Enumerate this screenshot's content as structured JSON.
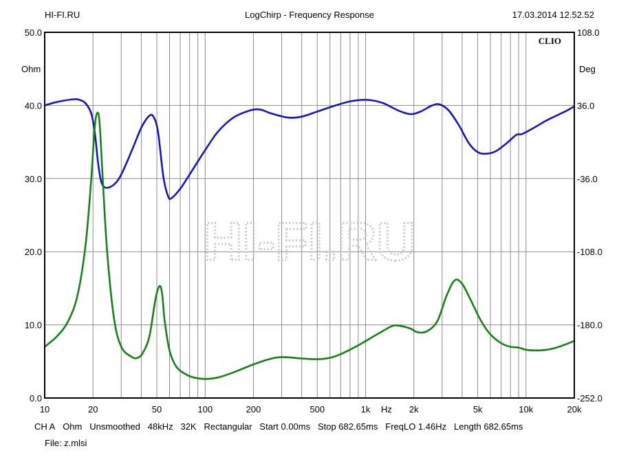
{
  "header": {
    "site": "HI-FI.RU",
    "title": "LogChirp - Frequency Response",
    "datetime": "17.03.2014 12.52.52"
  },
  "brand": "CLIO",
  "watermark": "HI-FI.RU",
  "footer": {
    "ch": "CH A",
    "unit": "Ohm",
    "smoothing": "Unsmoothed",
    "rate": "48kHz",
    "size": "32K",
    "window": "Rectangular",
    "start": "Start 0.00ms",
    "stop": "Stop 682.65ms",
    "freqlo": "FreqLO 1.46Hz",
    "length": "Length 682.65ms",
    "file": "File: z.mlsi"
  },
  "chart_data": {
    "type": "line",
    "title": "LogChirp - Frequency Response",
    "xlabel": "Hz",
    "ylabel": "Ohm",
    "y2label": "Deg",
    "xscale": "log",
    "xlim": [
      10,
      20000
    ],
    "ylim": [
      0,
      50
    ],
    "y2lim": [
      -252,
      108
    ],
    "grid": true,
    "x_tick_labels": [
      {
        "v": 10,
        "t": "10"
      },
      {
        "v": 20,
        "t": "20"
      },
      {
        "v": 50,
        "t": "50"
      },
      {
        "v": 100,
        "t": "100"
      },
      {
        "v": 200,
        "t": "200"
      },
      {
        "v": 500,
        "t": "500"
      },
      {
        "v": 1000,
        "t": "1k"
      },
      {
        "v": 2000,
        "t": "2k"
      },
      {
        "v": 5000,
        "t": "5k"
      },
      {
        "v": 10000,
        "t": "10k"
      },
      {
        "v": 20000,
        "t": "20k"
      }
    ],
    "y_ticks": [
      {
        "v": 0,
        "t": "0.0"
      },
      {
        "v": 10,
        "t": "10.0"
      },
      {
        "v": 20,
        "t": "20.0"
      },
      {
        "v": 30,
        "t": "30.0"
      },
      {
        "v": 40,
        "t": "40.0"
      },
      {
        "v": 50,
        "t": "50.0"
      }
    ],
    "y2_ticks": [
      {
        "v": -252,
        "t": "-252.0"
      },
      {
        "v": -180,
        "t": "-180.0"
      },
      {
        "v": -108,
        "t": "-108.0"
      },
      {
        "v": -36,
        "t": "-36.0"
      },
      {
        "v": 36,
        "t": "36.0"
      },
      {
        "v": 108,
        "t": "108.0"
      }
    ],
    "series": [
      {
        "color": "#1414c8",
        "axis": "right",
        "points": [
          [
            10,
            36
          ],
          [
            12,
            39.5
          ],
          [
            15,
            42
          ],
          [
            16.5,
            41.5
          ],
          [
            18,
            38
          ],
          [
            19.5,
            28
          ],
          [
            20.5,
            10
          ],
          [
            21.5,
            -20
          ],
          [
            22.5,
            -39
          ],
          [
            24,
            -45
          ],
          [
            27,
            -42
          ],
          [
            30,
            -32
          ],
          [
            35,
            -8
          ],
          [
            40,
            14
          ],
          [
            45,
            26
          ],
          [
            48,
            24
          ],
          [
            51,
            9
          ],
          [
            55,
            -35
          ],
          [
            59,
            -54
          ],
          [
            62,
            -55
          ],
          [
            70,
            -46
          ],
          [
            80,
            -32
          ],
          [
            100,
            -8
          ],
          [
            120,
            10
          ],
          [
            150,
            24
          ],
          [
            190,
            31
          ],
          [
            220,
            32
          ],
          [
            260,
            28
          ],
          [
            330,
            24
          ],
          [
            400,
            25
          ],
          [
            500,
            30
          ],
          [
            650,
            36
          ],
          [
            800,
            40
          ],
          [
            950,
            41.5
          ],
          [
            1100,
            41
          ],
          [
            1300,
            38
          ],
          [
            1600,
            31
          ],
          [
            1900,
            27.5
          ],
          [
            2200,
            30
          ],
          [
            2600,
            36
          ],
          [
            2900,
            37
          ],
          [
            3300,
            31
          ],
          [
            3800,
            17
          ],
          [
            4400,
            -1
          ],
          [
            5000,
            -10
          ],
          [
            5700,
            -11.5
          ],
          [
            6500,
            -9
          ],
          [
            7600,
            -1
          ],
          [
            8700,
            7
          ],
          [
            9500,
            8
          ],
          [
            11500,
            15
          ],
          [
            13000,
            20
          ],
          [
            15000,
            25
          ],
          [
            17500,
            30
          ],
          [
            20000,
            35
          ]
        ]
      },
      {
        "color": "#148214",
        "axis": "left",
        "points": [
          [
            10,
            7
          ],
          [
            12,
            8.5
          ],
          [
            14,
            10.5
          ],
          [
            16,
            14
          ],
          [
            18,
            21
          ],
          [
            19.5,
            30
          ],
          [
            20.5,
            37
          ],
          [
            21.3,
            39
          ],
          [
            22,
            37.5
          ],
          [
            23,
            30
          ],
          [
            24.5,
            20
          ],
          [
            27,
            11
          ],
          [
            30,
            7
          ],
          [
            35,
            5.6
          ],
          [
            38,
            5.5
          ],
          [
            41,
            6.2
          ],
          [
            45,
            8.5
          ],
          [
            49,
            13.5
          ],
          [
            52,
            15.3
          ],
          [
            54,
            14.2
          ],
          [
            56,
            10.5
          ],
          [
            60,
            6.5
          ],
          [
            66,
            4.3
          ],
          [
            75,
            3.3
          ],
          [
            85,
            2.8
          ],
          [
            100,
            2.6
          ],
          [
            120,
            2.8
          ],
          [
            150,
            3.5
          ],
          [
            200,
            4.6
          ],
          [
            250,
            5.3
          ],
          [
            300,
            5.6
          ],
          [
            400,
            5.4
          ],
          [
            500,
            5.3
          ],
          [
            600,
            5.5
          ],
          [
            700,
            6.0
          ],
          [
            900,
            7.2
          ],
          [
            1200,
            8.8
          ],
          [
            1450,
            9.8
          ],
          [
            1600,
            9.9
          ],
          [
            1900,
            9.5
          ],
          [
            2100,
            9.0
          ],
          [
            2400,
            9.1
          ],
          [
            2800,
            10.5
          ],
          [
            3200,
            14
          ],
          [
            3600,
            16.1
          ],
          [
            4000,
            15.6
          ],
          [
            4500,
            13.5
          ],
          [
            5200,
            10.7
          ],
          [
            6000,
            8.7
          ],
          [
            7000,
            7.5
          ],
          [
            8000,
            7.0
          ],
          [
            9000,
            6.9
          ],
          [
            10000,
            6.6
          ],
          [
            11500,
            6.5
          ],
          [
            13500,
            6.6
          ],
          [
            15500,
            6.9
          ],
          [
            18000,
            7.4
          ],
          [
            20000,
            7.8
          ]
        ]
      }
    ]
  }
}
